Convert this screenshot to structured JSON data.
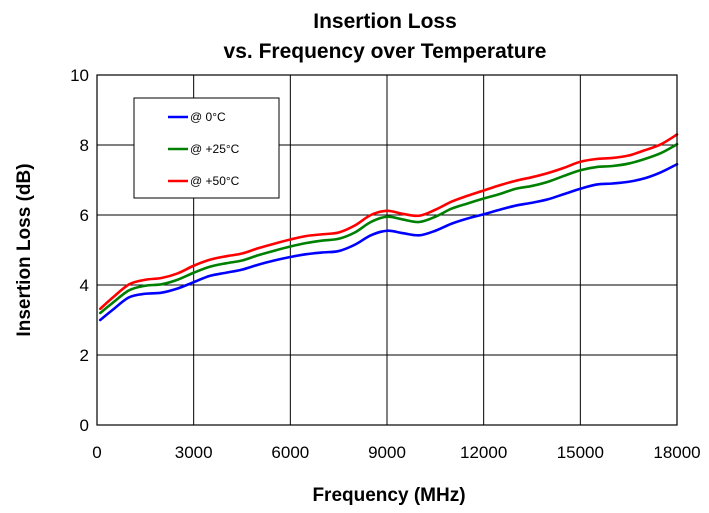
{
  "chart_data": {
    "type": "line",
    "title": [
      "Insertion Loss",
      "vs. Frequency over Temperature"
    ],
    "xlabel": "Frequency (MHz)",
    "ylabel": "Insertion Loss (dB)",
    "xlim": [
      0,
      18000
    ],
    "ylim": [
      0,
      10
    ],
    "xticks": [
      0,
      3000,
      6000,
      9000,
      12000,
      15000,
      18000
    ],
    "yticks": [
      0,
      2,
      4,
      6,
      8,
      10
    ],
    "grid": true,
    "legend_position": "top-left",
    "x": [
      100,
      500,
      1000,
      1500,
      2000,
      2500,
      3000,
      3500,
      4000,
      4500,
      5000,
      5500,
      6000,
      6500,
      7000,
      7500,
      8000,
      8500,
      9000,
      9500,
      10000,
      10500,
      11000,
      11500,
      12000,
      12500,
      13000,
      13500,
      14000,
      14500,
      15000,
      15500,
      16000,
      16500,
      17000,
      17500,
      18000
    ],
    "series": [
      {
        "name": "@ 0°C",
        "color": "#0000ff",
        "values": [
          3.0,
          3.3,
          3.65,
          3.75,
          3.78,
          3.9,
          4.08,
          4.26,
          4.35,
          4.44,
          4.58,
          4.7,
          4.8,
          4.88,
          4.93,
          4.97,
          5.15,
          5.42,
          5.55,
          5.48,
          5.42,
          5.55,
          5.75,
          5.9,
          6.02,
          6.15,
          6.27,
          6.35,
          6.45,
          6.6,
          6.75,
          6.87,
          6.9,
          6.95,
          7.05,
          7.22,
          7.45
        ]
      },
      {
        "name": "@ +25°C",
        "color": "#008000",
        "values": [
          3.2,
          3.5,
          3.85,
          3.98,
          4.02,
          4.15,
          4.35,
          4.52,
          4.62,
          4.7,
          4.85,
          4.98,
          5.1,
          5.2,
          5.27,
          5.32,
          5.5,
          5.8,
          5.95,
          5.87,
          5.8,
          5.95,
          6.18,
          6.33,
          6.47,
          6.6,
          6.75,
          6.83,
          6.95,
          7.12,
          7.28,
          7.37,
          7.4,
          7.47,
          7.6,
          7.77,
          8.02
        ]
      },
      {
        "name": "@ +50°C",
        "color": "#ff0000",
        "values": [
          3.32,
          3.65,
          4.02,
          4.15,
          4.2,
          4.33,
          4.55,
          4.72,
          4.82,
          4.9,
          5.05,
          5.18,
          5.3,
          5.4,
          5.45,
          5.5,
          5.7,
          6.0,
          6.12,
          6.03,
          5.98,
          6.15,
          6.38,
          6.55,
          6.7,
          6.85,
          6.98,
          7.08,
          7.2,
          7.35,
          7.52,
          7.6,
          7.63,
          7.7,
          7.85,
          8.02,
          8.3
        ]
      }
    ]
  }
}
